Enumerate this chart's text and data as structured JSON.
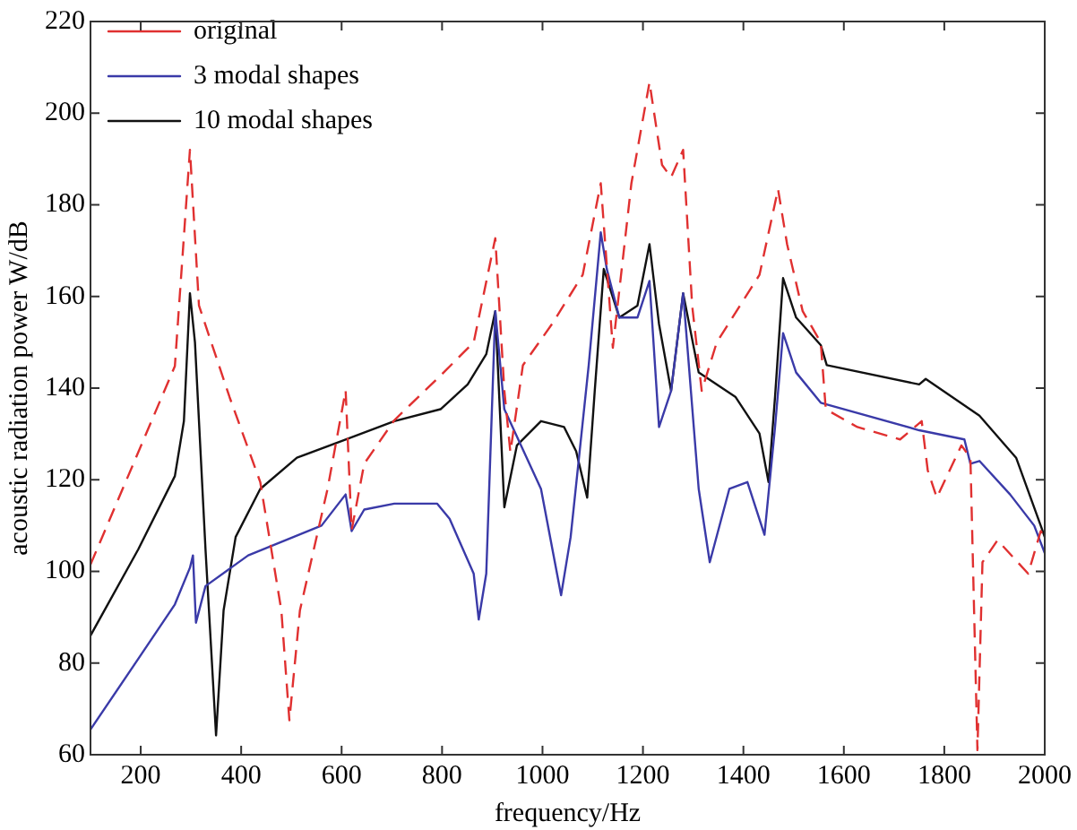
{
  "chart_data": {
    "type": "line",
    "xlabel": "frequency/Hz",
    "ylabel": "acoustic radiation power W/dB",
    "xlim": [
      100,
      2000
    ],
    "xticks": [
      200,
      400,
      600,
      800,
      1000,
      1200,
      1400,
      1600,
      1800,
      2000
    ],
    "ylim": [
      60,
      220
    ],
    "yticks": [
      60,
      80,
      100,
      120,
      140,
      160,
      180,
      200,
      220
    ],
    "grid": false,
    "legend": "top left",
    "marker": "none",
    "series": [
      {
        "name": "original",
        "color": "#e03030",
        "line_style": "dashed",
        "x": [
          100,
          268,
          298,
          316,
          377,
          438,
          480,
          496,
          517,
          572,
          608,
          620,
          645,
          705,
          803,
          863,
          906,
          924,
          936,
          961,
          1019,
          1080,
          1116,
          1140,
          1177,
          1213,
          1238,
          1256,
          1280,
          1298,
          1317,
          1347,
          1432,
          1469,
          1487,
          1518,
          1554,
          1564,
          1627,
          1712,
          1755,
          1767,
          1785,
          1834,
          1852,
          1866,
          1876,
          1906,
          1967,
          1992,
          2000
        ],
        "values": [
          101.5,
          144.8,
          192,
          158,
          138,
          119.5,
          91.5,
          67.5,
          91.5,
          118,
          139.5,
          109,
          123.5,
          133,
          143.4,
          150,
          172.7,
          139.5,
          126,
          145,
          154,
          164.7,
          184.7,
          148.8,
          184.7,
          206.7,
          188.7,
          186,
          192,
          158,
          139.4,
          150,
          164.7,
          183.4,
          171.4,
          156.8,
          150,
          135.4,
          131.5,
          128.8,
          132.8,
          122.1,
          116.1,
          127.5,
          124.8,
          61,
          102,
          106.8,
          99.5,
          108.8,
          107.5
        ]
      },
      {
        "name": "3 modal shapes",
        "color": "#3a3aa8",
        "line_style": "solid",
        "x": [
          100,
          195,
          268,
          298,
          304,
          310,
          329,
          414,
          560,
          608,
          620,
          645,
          705,
          790,
          815,
          863,
          873,
          888,
          906,
          924,
          997,
          1037,
          1056,
          1092,
          1116,
          1128,
          1153,
          1189,
          1213,
          1232,
          1256,
          1280,
          1311,
          1333,
          1372,
          1408,
          1442,
          1463,
          1479,
          1505,
          1554,
          1750,
          1840,
          1852,
          1870,
          1931,
          1979,
          2000
        ],
        "values": [
          65.5,
          80.9,
          92.8,
          100.8,
          103.5,
          88.8,
          96.8,
          103.5,
          110,
          116.8,
          108.8,
          113.5,
          114.8,
          114.8,
          111.5,
          99.5,
          89.5,
          99.5,
          156.8,
          135.4,
          118,
          94.8,
          107.5,
          145,
          174,
          166,
          155.4,
          155.4,
          163.4,
          131.5,
          139.4,
          160.7,
          118,
          102,
          118,
          119.5,
          108,
          131.5,
          152,
          143.4,
          136.8,
          130.8,
          128.8,
          123.5,
          124.1,
          116.8,
          110,
          104
        ]
      },
      {
        "name": "10 modal shapes",
        "color": "#111111",
        "line_style": "solid",
        "x": [
          100,
          195,
          268,
          286,
          298,
          308,
          329,
          350,
          365,
          389,
          438,
          511,
          608,
          705,
          797,
          851,
          888,
          906,
          924,
          949,
          997,
          1043,
          1067,
          1089,
          1104,
          1122,
          1153,
          1189,
          1213,
          1232,
          1256,
          1280,
          1311,
          1384,
          1432,
          1450,
          1463,
          1479,
          1505,
          1554,
          1566,
          1750,
          1763,
          1870,
          1943,
          1992,
          2000
        ],
        "values": [
          86,
          104.8,
          120.8,
          132.8,
          160.7,
          150,
          104.8,
          64.2,
          91.5,
          107.5,
          118,
          124.8,
          128.8,
          132.8,
          135.4,
          140.8,
          147.4,
          156.8,
          114,
          127.5,
          132.8,
          131.5,
          126.2,
          116.1,
          139.4,
          166,
          155.4,
          158,
          171.4,
          154,
          139.4,
          160.7,
          143.4,
          138.1,
          130.1,
          119.5,
          138.1,
          164,
          155.4,
          149.4,
          145,
          140.8,
          142,
          134,
          124.8,
          110,
          107.5
        ]
      }
    ]
  }
}
